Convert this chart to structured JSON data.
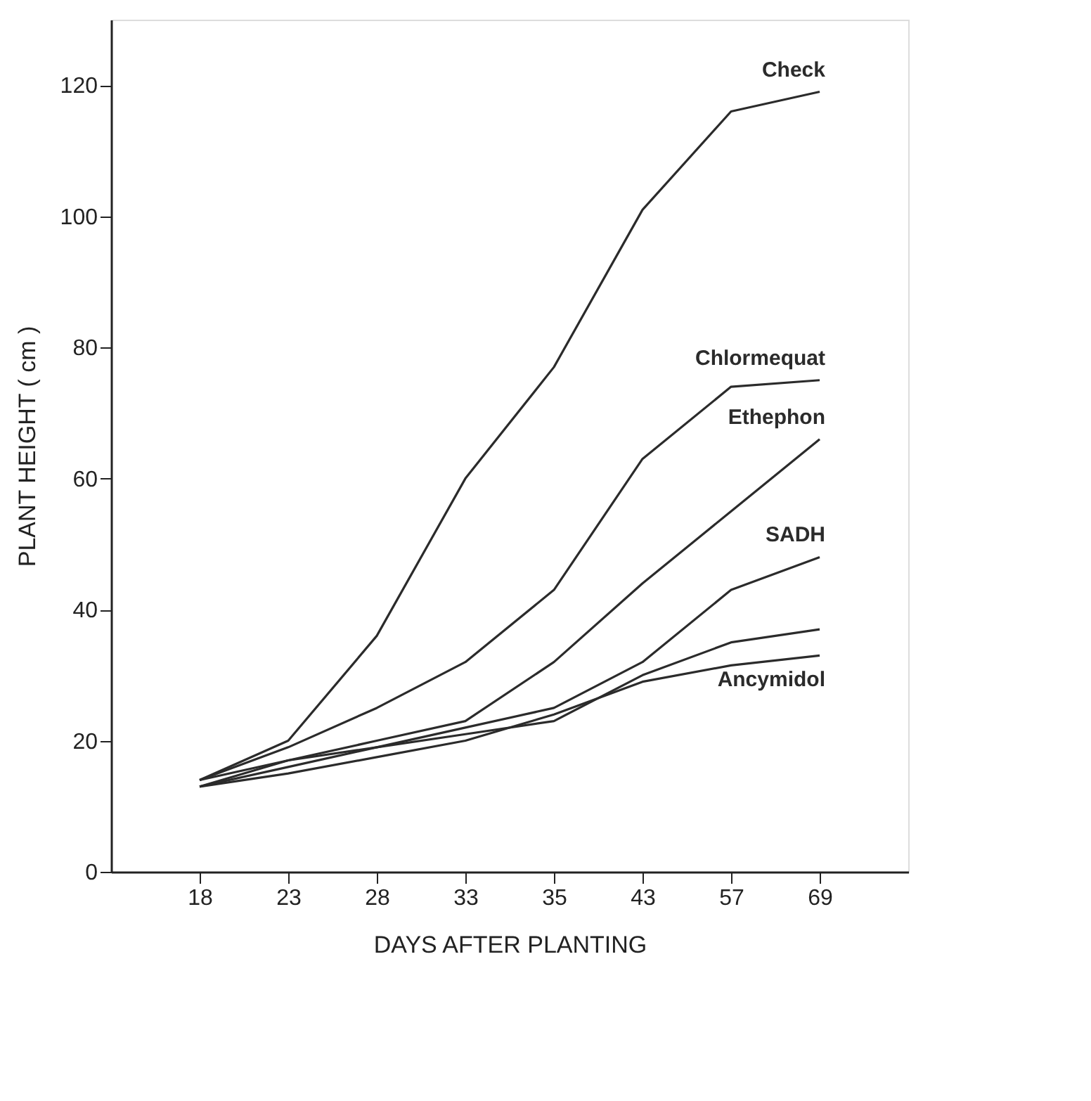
{
  "chart_data": {
    "type": "line",
    "xlabel": "DAYS AFTER PLANTING",
    "ylabel": "PLANT HEIGHT ( cm )",
    "categories": [
      "18",
      "23",
      "28",
      "33",
      "35",
      "43",
      "57",
      "69"
    ],
    "ylim": [
      0,
      130
    ],
    "yticks": [
      0,
      20,
      40,
      60,
      80,
      100,
      120
    ],
    "grid": false,
    "marker": "none",
    "line_style": "solid",
    "series": [
      {
        "name": "Check",
        "color": "#2b2b2b",
        "values": [
          14,
          20,
          36,
          60,
          77,
          101,
          116,
          119
        ]
      },
      {
        "name": "Chlormequat",
        "color": "#2b2b2b",
        "values": [
          14,
          19,
          25,
          32,
          43,
          63,
          74,
          75
        ]
      },
      {
        "name": "Ethephon",
        "color": "#2b2b2b",
        "values": [
          13,
          17,
          20,
          23,
          32,
          44,
          55,
          66
        ]
      },
      {
        "name": "SADH",
        "color": "#2b2b2b",
        "values": [
          13,
          16,
          19,
          22,
          25,
          32,
          43,
          48
        ]
      },
      {
        "color": "#2b2b2b",
        "values": [
          14,
          17,
          19,
          21,
          23,
          30,
          35,
          37
        ]
      },
      {
        "name": "Ancymidol",
        "color": "#2b2b2b",
        "values": [
          13,
          15,
          17.5,
          20,
          24,
          29,
          31.5,
          33
        ]
      }
    ]
  }
}
